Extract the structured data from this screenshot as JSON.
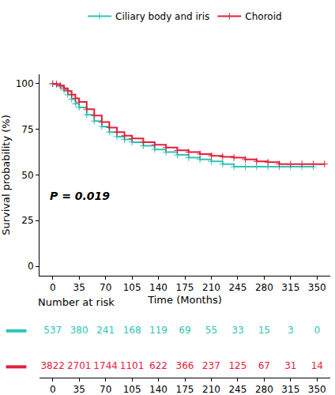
{
  "chart_data": {
    "type": "line",
    "line_style": "step",
    "marker": "cross",
    "legend": "top",
    "grid": false,
    "x_label": "Time (Months)",
    "y_label": "Survival probability (%)",
    "annotation": "P = 0.019",
    "xlim": [
      -17.5,
      367.5
    ],
    "xticks": [
      0,
      35,
      70,
      105,
      140,
      175,
      210,
      245,
      280,
      315,
      350
    ],
    "ylim": [
      -5,
      105
    ],
    "yticks": [
      0,
      25,
      50,
      75,
      100
    ],
    "series": [
      {
        "name": "Ciliary body and iris",
        "color": "#2ec4b6",
        "x": [
          0,
          5,
          10,
          15,
          20,
          25,
          30,
          35,
          45,
          55,
          65,
          75,
          85,
          95,
          105,
          120,
          135,
          150,
          165,
          180,
          195,
          210,
          225,
          240,
          255,
          270,
          285,
          300,
          315,
          330,
          345
        ],
        "values": [
          100,
          99.5,
          98.5,
          96.5,
          94,
          91.5,
          89,
          87,
          83,
          79.5,
          76.5,
          73.5,
          71,
          69.5,
          68,
          66,
          64,
          62.5,
          61,
          59.5,
          58.5,
          57.5,
          56,
          54.5,
          54.5,
          54.5,
          54.5,
          54.5,
          54.5,
          54.5,
          54.5
        ]
      },
      {
        "name": "Choroid",
        "color": "#e4203a",
        "x": [
          0,
          5,
          10,
          15,
          20,
          25,
          30,
          35,
          45,
          55,
          65,
          75,
          85,
          95,
          105,
          120,
          135,
          150,
          165,
          180,
          195,
          210,
          225,
          240,
          255,
          270,
          285,
          300,
          315,
          330,
          345,
          360
        ],
        "values": [
          100,
          99.8,
          99,
          97.5,
          96,
          94,
          92,
          90,
          86,
          82.5,
          79,
          76,
          73.5,
          71.5,
          70,
          68,
          66.5,
          65,
          63.5,
          62.5,
          61.5,
          60.5,
          60,
          59.5,
          58.5,
          57.5,
          57,
          56,
          56,
          56,
          56,
          56
        ]
      }
    ],
    "risk_table": {
      "title": "Number at risk",
      "x": [
        0,
        35,
        70,
        105,
        140,
        175,
        210,
        245,
        280,
        315,
        350
      ],
      "counts": [
        [
          537,
          380,
          241,
          168,
          119,
          69,
          55,
          33,
          15,
          3,
          0
        ],
        [
          3822,
          2701,
          1744,
          1101,
          622,
          366,
          237,
          125,
          67,
          31,
          14
        ]
      ]
    }
  }
}
